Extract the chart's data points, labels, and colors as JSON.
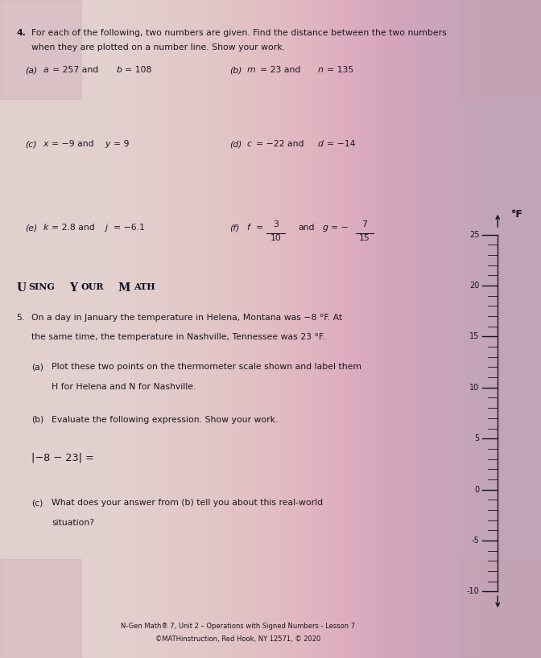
{
  "bg_color": "#ddc8c8",
  "bg_top_color": "#c8b0b8",
  "text_color": "#1a1520",
  "title_num": "4.",
  "title_line1": "For each of the following, two numbers are given. Find the distance between the two numbers",
  "title_line2": "when they are plotted on a number line. Show your work.",
  "part_a": "(a) a = 257 and b = 108",
  "part_b": "(b) m = 23 and n = 135",
  "part_c": "(c) x = −9 and y = 9",
  "part_d": "(d) c = −22 and d = −14",
  "part_e": "(e) k = 2.8 and j = −6.1",
  "part_f_pre": "(f) f =",
  "part_f_num1": "3",
  "part_f_den1": "10",
  "part_f_mid": "and g = −",
  "part_f_num2": "7",
  "part_f_den2": "15",
  "section_title_upper": "USING YOUR MATH",
  "q5_line1": "5. On a day in January the temperature in Helena, Montana was −8 °F. At",
  "q5_line2": "  the same time, the temperature in Nashville, Tennessee was 23 °F.",
  "qa_line1": " (a) Plot these two points on the thermometer scale shown and label them",
  "qa_line2": "    H for Helena and N for Nashville.",
  "qb_line": " (b) Evaluate the following expression. Show your work.",
  "qb_expr": "|−8 − 23| =",
  "qc_line1": " (c) What does your answer from (b) tell you about this real-world",
  "qc_line2": "    situation?",
  "footer1": "N-Gen Math® 7, Unit 2 – Operations with Signed Numbers - Lesson 7",
  "footer2": "©MATHinstruction, Red Hook, NY 12571, © 2020",
  "thermo_min": -10,
  "thermo_max": 25,
  "thermo_major": [
    25,
    20,
    15,
    10,
    5,
    0,
    -5,
    -10
  ]
}
